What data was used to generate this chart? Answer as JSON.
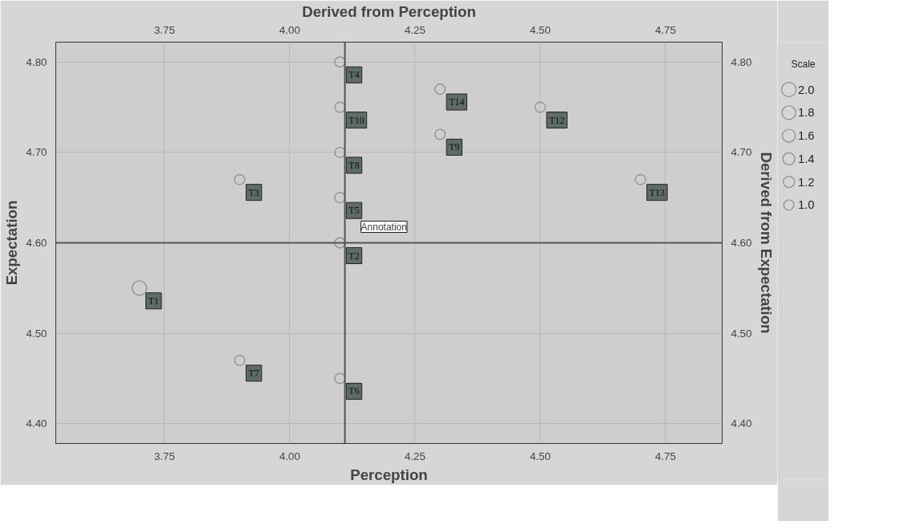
{
  "chart_data": {
    "type": "bubble",
    "xlabel": "Perception",
    "ylabel": "Expectation",
    "x2label": "Derived from Perception",
    "y2label": "Derived from Expectation",
    "legend_title": "Scale",
    "grid": true,
    "marker": "circle",
    "series": [
      {
        "color": "#8a8a8a",
        "x": [
          3.7,
          4.1,
          3.9,
          4.1,
          4.1,
          4.1,
          3.9,
          4.1,
          4.3,
          4.1,
          4.5,
          4.7,
          4.3
        ],
        "values": [
          4.55,
          4.6,
          4.67,
          4.8,
          4.65,
          4.45,
          4.47,
          4.7,
          4.72,
          4.75,
          4.75,
          4.67,
          4.77
        ],
        "sizes": [
          2.0,
          1.0,
          1.0,
          1.0,
          1.0,
          1.0,
          1.0,
          1.0,
          1.0,
          1.0,
          1.0,
          1.0,
          1.0
        ],
        "value_labels": [
          "T1",
          "T2",
          "T3",
          "T4",
          "T5",
          "T6",
          "T7",
          "T8",
          "T9",
          "T10",
          "T12",
          "T13",
          "T14"
        ]
      }
    ],
    "size_legend": [
      {
        "value": 2,
        "label": "2.0"
      },
      1.8,
      1.6,
      1.4,
      1.2,
      {
        "value": 1,
        "label": "1.0"
      }
    ],
    "xlim": [
      3.533,
      4.863
    ],
    "xticks": [
      3.75,
      {
        "value": 4.0,
        "label": "4.00"
      },
      4.25,
      {
        "value": 4.5,
        "label": "4.50"
      },
      4.75
    ],
    "x2lim": [
      3.533,
      4.863
    ],
    "x2ticks": [
      3.75,
      {
        "value": 4.0,
        "label": "4.00"
      },
      4.25,
      {
        "value": 4.5,
        "label": "4.50"
      },
      4.75
    ],
    "ylim": [
      4.378,
      4.822
    ],
    "yticks": [
      {
        "value": 4.4,
        "label": "4.40"
      },
      {
        "value": 4.5,
        "label": "4.50"
      },
      {
        "value": 4.6,
        "label": "4.60"
      },
      {
        "value": 4.7,
        "label": "4.70"
      },
      {
        "value": 4.8,
        "label": "4.80"
      }
    ],
    "y2lim": [
      4.378,
      4.822
    ],
    "y2ticks": [
      {
        "value": 4.4,
        "label": "4.40"
      },
      {
        "value": 4.5,
        "label": "4.50"
      },
      {
        "value": 4.6,
        "label": "4.60"
      },
      {
        "value": 4.7,
        "label": "4.70"
      },
      {
        "value": 4.8,
        "label": "4.80"
      }
    ],
    "ref_lines": [
      {
        "axis": "x",
        "value": 4.11,
        "color": "#555555"
      },
      {
        "axis": "y",
        "value": 4.6,
        "color": "#555555"
      }
    ],
    "annotations": [
      {
        "text": "Annotation",
        "x": 4.11,
        "y": 4.6
      }
    ]
  }
}
